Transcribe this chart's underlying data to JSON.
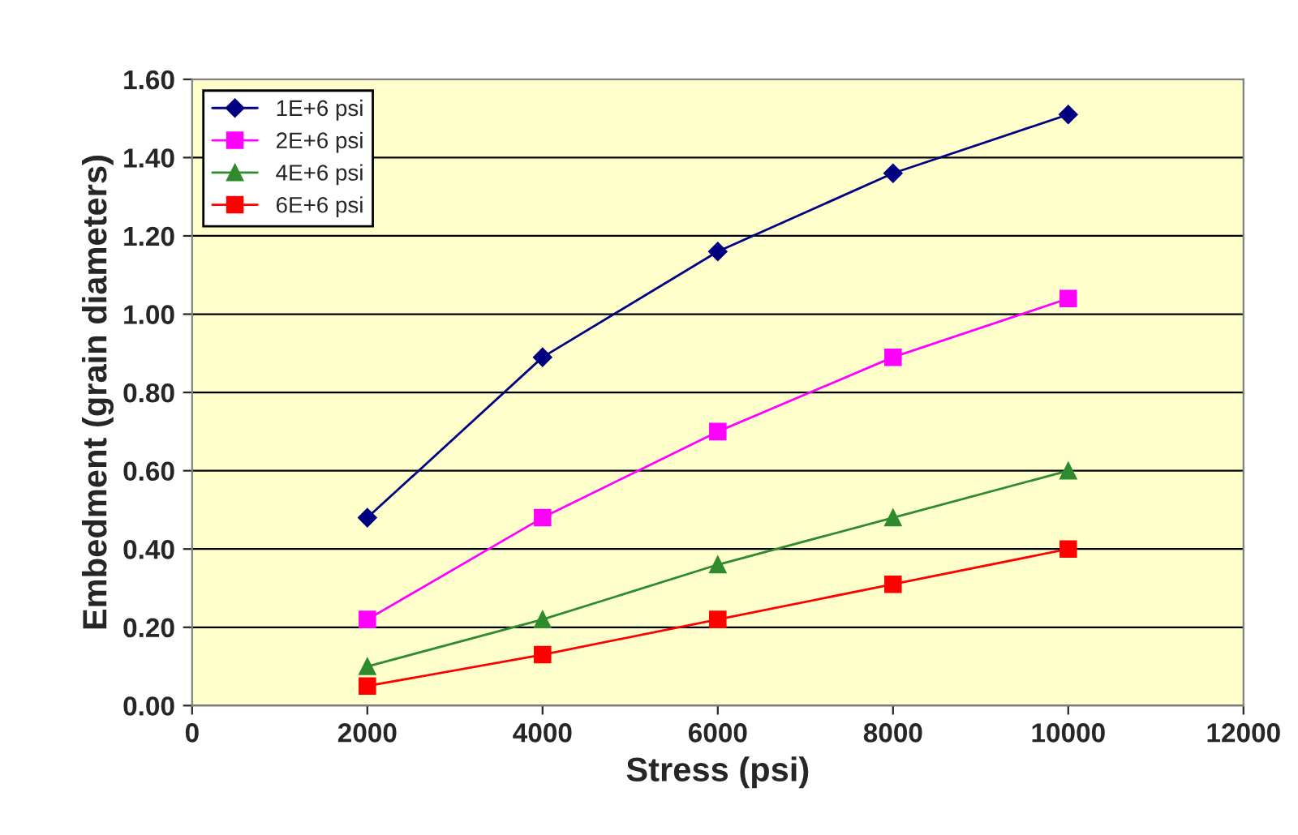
{
  "chart_data": {
    "type": "line",
    "xlabel": "Stress (psi)",
    "ylabel": "Embedment (grain diameters)",
    "x": [
      2000,
      4000,
      6000,
      8000,
      10000
    ],
    "series": [
      {
        "name": "1E+6 psi",
        "color": "#000080",
        "marker": "diamond",
        "values": [
          0.48,
          0.89,
          1.16,
          1.36,
          1.51
        ]
      },
      {
        "name": "2E+6 psi",
        "color": "#ff00ff",
        "marker": "square",
        "values": [
          0.22,
          0.48,
          0.7,
          0.89,
          1.04
        ]
      },
      {
        "name": "4E+6 psi",
        "color": "#2e8b2e",
        "marker": "triangle",
        "values": [
          0.1,
          0.22,
          0.36,
          0.48,
          0.6
        ]
      },
      {
        "name": "6E+6 psi",
        "color": "#ff0000",
        "marker": "square",
        "values": [
          0.05,
          0.13,
          0.22,
          0.31,
          0.4
        ]
      }
    ],
    "xlim": [
      0,
      12000
    ],
    "xticks": [
      0,
      2000,
      4000,
      6000,
      8000,
      10000,
      12000
    ],
    "ylim": [
      0,
      1.6
    ],
    "yticks": [
      {
        "value": 0,
        "label": "0.00"
      },
      {
        "value": 0.2,
        "label": "0.20"
      },
      {
        "value": 0.4,
        "label": "0.40"
      },
      {
        "value": 0.6,
        "label": "0.60"
      },
      {
        "value": 0.8,
        "label": "0.80"
      },
      {
        "value": 1.0,
        "label": "1.00"
      },
      {
        "value": 1.2,
        "label": "1.20"
      },
      {
        "value": 1.4,
        "label": "1.40"
      },
      {
        "value": 1.6,
        "label": "1.60"
      }
    ],
    "grid": "y",
    "legend": "top left",
    "line_style": "solid"
  }
}
